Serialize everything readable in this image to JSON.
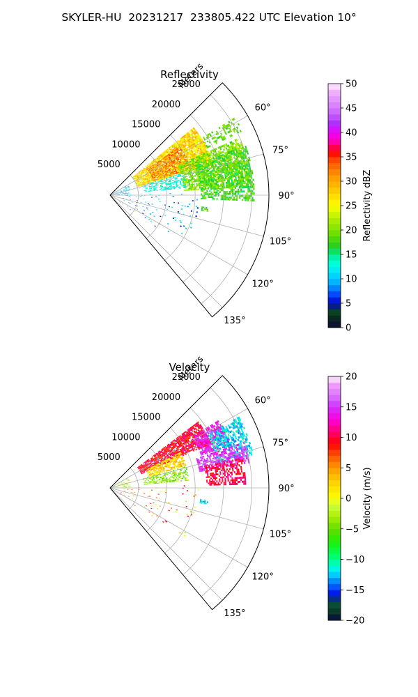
{
  "figure": {
    "title": "SKYLER-HU  20231217  233805.422 UTC Elevation 10°"
  },
  "chart_data": [
    {
      "type": "heatmap",
      "title": "Reflectivity",
      "range_label": "Meters",
      "range_ticks": [
        5000,
        10000,
        15000,
        20000,
        25000
      ],
      "range_tick_labels": [
        "5000",
        "10000",
        "15000",
        "20000",
        "25000"
      ],
      "range_max": 28000,
      "azimuth_range": [
        45,
        140
      ],
      "azimuth_ticks": [
        60,
        75,
        90,
        105,
        120,
        135
      ],
      "azimuth_tick_labels": [
        "60°",
        "75°",
        "90°",
        "105°",
        "120°",
        "135°"
      ],
      "grid": true,
      "colorbar": {
        "label": "Reflectivity dBZ",
        "min": 0,
        "max": 50,
        "ticks": [
          0,
          5,
          10,
          15,
          20,
          25,
          30,
          35,
          40,
          45,
          50
        ],
        "tick_labels": [
          "0",
          "5",
          "10",
          "15",
          "20",
          "25",
          "30",
          "35",
          "40",
          "45",
          "50"
        ],
        "colormap": "NWSRef",
        "stops": [
          [
            0,
            "#0a0a3c"
          ],
          [
            2,
            "#0a2a1e"
          ],
          [
            3.5,
            "#0a4a1e"
          ],
          [
            5,
            "#0000cc"
          ],
          [
            7,
            "#0050ff"
          ],
          [
            9,
            "#00aaff"
          ],
          [
            11,
            "#00ddff"
          ],
          [
            13,
            "#00ffdd"
          ],
          [
            15,
            "#00ee90"
          ],
          [
            16.5,
            "#22cc22"
          ],
          [
            19,
            "#66dd00"
          ],
          [
            22,
            "#aaee00"
          ],
          [
            25,
            "#ffff00"
          ],
          [
            28,
            "#ffcc00"
          ],
          [
            31,
            "#ff9900"
          ],
          [
            34,
            "#ff5500"
          ],
          [
            36,
            "#ff0000"
          ],
          [
            38,
            "#ff00aa"
          ],
          [
            40,
            "#ee00ff"
          ],
          [
            42,
            "#aa33ff"
          ],
          [
            44,
            "#cc66ff"
          ],
          [
            46,
            "#dd88ff"
          ],
          [
            48,
            "#eeaaff"
          ],
          [
            50,
            "#ffeeff"
          ]
        ]
      },
      "echo_regions": [
        {
          "az": [
            51,
            73
          ],
          "r": [
            5000,
            19000
          ],
          "value": 27,
          "spread": 4,
          "density": 0.85
        },
        {
          "az": [
            55,
            72
          ],
          "r": [
            8000,
            15000
          ],
          "value": 32,
          "spread": 3,
          "density": 0.6
        },
        {
          "az": [
            66,
            86
          ],
          "r": [
            13000,
            25000
          ],
          "value": 20,
          "spread": 3,
          "density": 0.7
        },
        {
          "az": [
            70,
            92
          ],
          "r": [
            16000,
            25500
          ],
          "value": 18,
          "spread": 3,
          "density": 0.6
        },
        {
          "az": [
            58,
            64
          ],
          "r": [
            19000,
            26000
          ],
          "value": 19,
          "spread": 2,
          "density": 0.35
        },
        {
          "az": [
            73,
            84
          ],
          "r": [
            6000,
            13500
          ],
          "value": 13,
          "spread": 2,
          "density": 0.45
        },
        {
          "az": [
            60,
            92
          ],
          "r": [
            200,
            3500
          ],
          "value": 10,
          "spread": 4,
          "density": 0.25
        },
        {
          "az": [
            88,
            125
          ],
          "r": [
            2000,
            16000
          ],
          "value": 9,
          "spread": 5,
          "density": 0.04
        },
        {
          "az": [
            97,
            99
          ],
          "r": [
            16000,
            17500
          ],
          "value": 18,
          "spread": 2,
          "density": 0.5
        }
      ]
    },
    {
      "type": "heatmap",
      "title": "Velocity",
      "range_label": "Meters",
      "range_ticks": [
        5000,
        10000,
        15000,
        20000,
        25000
      ],
      "range_tick_labels": [
        "5000",
        "10000",
        "15000",
        "20000",
        "25000"
      ],
      "range_max": 28000,
      "azimuth_range": [
        45,
        140
      ],
      "azimuth_ticks": [
        60,
        75,
        90,
        105,
        120,
        135
      ],
      "azimuth_tick_labels": [
        "60°",
        "75°",
        "90°",
        "105°",
        "120°",
        "135°"
      ],
      "grid": true,
      "colorbar": {
        "label": "Velocity (m/s)",
        "min": -20,
        "max": 20,
        "ticks": [
          -20,
          -15,
          -10,
          -5,
          0,
          5,
          10,
          15,
          20
        ],
        "tick_labels": [
          "−20",
          "−15",
          "−10",
          "−5",
          "0",
          "5",
          "10",
          "15",
          "20"
        ],
        "colormap": "NWSVel",
        "stops": [
          [
            -20,
            "#0a0a3c"
          ],
          [
            -18.5,
            "#0a3a2a"
          ],
          [
            -17,
            "#0a5a3a"
          ],
          [
            -16,
            "#0000dd"
          ],
          [
            -14.5,
            "#0055ff"
          ],
          [
            -13,
            "#00aaff"
          ],
          [
            -12,
            "#00eeff"
          ],
          [
            -10.5,
            "#00ffaa"
          ],
          [
            -9,
            "#00ff55"
          ],
          [
            -7,
            "#22ee00"
          ],
          [
            -5,
            "#66dd00"
          ],
          [
            -3,
            "#aaee00"
          ],
          [
            -1,
            "#ccff44"
          ],
          [
            0,
            "#ffff00"
          ],
          [
            3,
            "#ffcc00"
          ],
          [
            5,
            "#ff9900"
          ],
          [
            7,
            "#ff5500"
          ],
          [
            9,
            "#ff0000"
          ],
          [
            11,
            "#ff0077"
          ],
          [
            13,
            "#ff00dd"
          ],
          [
            15,
            "#cc33ff"
          ],
          [
            17,
            "#dd77ff"
          ],
          [
            18.5,
            "#ee99ff"
          ],
          [
            20,
            "#ffeeff"
          ]
        ]
      },
      "echo_regions": [
        {
          "az": [
            53,
            66
          ],
          "r": [
            6000,
            19500
          ],
          "value": 9.5,
          "spread": 2.5,
          "density": 0.85
        },
        {
          "az": [
            63,
            73
          ],
          "r": [
            7000,
            14000
          ],
          "value": 2,
          "spread": 3,
          "density": 0.7
        },
        {
          "az": [
            58,
            70
          ],
          "r": [
            17000,
            22500
          ],
          "value": 14,
          "spread": 2,
          "density": 0.75
        },
        {
          "az": [
            61,
            77
          ],
          "r": [
            19500,
            26000
          ],
          "value": -12,
          "spread": 2,
          "density": 0.6
        },
        {
          "az": [
            71,
            80
          ],
          "r": [
            16000,
            25000
          ],
          "value": 15,
          "spread": 2,
          "density": 0.65
        },
        {
          "az": [
            77,
            88
          ],
          "r": [
            17000,
            24000
          ],
          "value": 10,
          "spread": 2,
          "density": 0.6
        },
        {
          "az": [
            74,
            84
          ],
          "r": [
            6000,
            14000
          ],
          "value": -4,
          "spread": 2.5,
          "density": 0.45
        },
        {
          "az": [
            60,
            92
          ],
          "r": [
            200,
            3500
          ],
          "value": -3,
          "spread": 5,
          "density": 0.25
        },
        {
          "az": [
            88,
            125
          ],
          "r": [
            2000,
            16000
          ],
          "value": 4,
          "spread": 8,
          "density": 0.04
        },
        {
          "az": [
            97,
            99
          ],
          "r": [
            16000,
            17500
          ],
          "value": -12,
          "spread": 2,
          "density": 0.5
        }
      ]
    }
  ]
}
